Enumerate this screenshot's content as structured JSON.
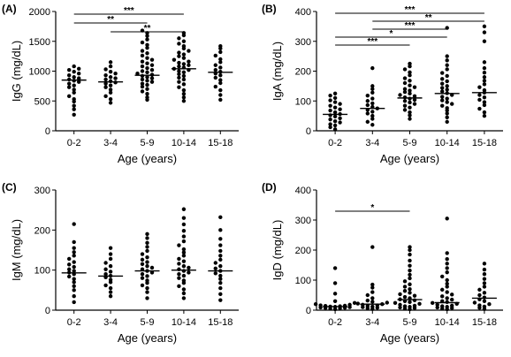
{
  "chart_data": [
    {
      "panel": "(A)",
      "type": "scatter",
      "xlabel": "Age (years)",
      "ylabel": "IgG (mg/dL)",
      "ylim": [
        0,
        2000
      ],
      "yticks": [
        0,
        500,
        1000,
        1500,
        2000
      ],
      "categories": [
        "0-2",
        "3-4",
        "5-9",
        "10-14",
        "15-18"
      ],
      "medians": [
        850,
        820,
        930,
        1040,
        980
      ],
      "points": [
        [
          270,
          360,
          420,
          490,
          530,
          580,
          640,
          690,
          730,
          760,
          790,
          820,
          840,
          860,
          880,
          900,
          930,
          960,
          990,
          1020,
          1040,
          1080
        ],
        [
          470,
          530,
          580,
          640,
          690,
          730,
          760,
          790,
          810,
          830,
          860,
          880,
          900,
          930,
          960,
          990,
          1030,
          1080,
          1150
        ],
        [
          520,
          560,
          620,
          660,
          700,
          740,
          770,
          790,
          820,
          840,
          860,
          880,
          900,
          920,
          940,
          960,
          980,
          1000,
          1020,
          1050,
          1080,
          1100,
          1130,
          1160,
          1190,
          1220,
          1260,
          1300,
          1340,
          1390,
          1440,
          1480,
          1530,
          1590,
          1640,
          1680
        ],
        [
          500,
          560,
          620,
          680,
          730,
          780,
          820,
          860,
          890,
          920,
          950,
          980,
          1000,
          1020,
          1040,
          1060,
          1080,
          1100,
          1120,
          1140,
          1160,
          1190,
          1220,
          1250,
          1280,
          1310,
          1340,
          1380,
          1420,
          1460,
          1500,
          1550,
          1600,
          1640
        ],
        [
          520,
          600,
          680,
          740,
          800,
          850,
          890,
          930,
          960,
          990,
          1020,
          1060,
          1100,
          1150,
          1200,
          1260,
          1320,
          1380,
          1420
        ]
      ],
      "brackets": [
        {
          "from": "0-2",
          "to": "10-14",
          "label": "***"
        },
        {
          "from": "0-2",
          "to": "5-9",
          "label": "**"
        },
        {
          "from": "3-4",
          "to": "10-14",
          "label": "**"
        }
      ]
    },
    {
      "panel": "(B)",
      "type": "scatter",
      "xlabel": "Age (years)",
      "ylabel": "IgA (mg/dL)",
      "ylim": [
        0,
        400
      ],
      "yticks": [
        0,
        100,
        200,
        300,
        400
      ],
      "categories": [
        "0-2",
        "3-4",
        "5-9",
        "10-14",
        "15-18"
      ],
      "medians": [
        55,
        75,
        110,
        125,
        128
      ],
      "points": [
        [
          5,
          12,
          18,
          22,
          28,
          32,
          38,
          42,
          48,
          52,
          56,
          62,
          68,
          72,
          78,
          84,
          90,
          96,
          102,
          110,
          118,
          125
        ],
        [
          20,
          30,
          40,
          50,
          58,
          64,
          70,
          75,
          80,
          86,
          92,
          100,
          108,
          118,
          128,
          140,
          150,
          210
        ],
        [
          40,
          52,
          62,
          70,
          78,
          84,
          90,
          95,
          100,
          104,
          108,
          112,
          116,
          120,
          125,
          130,
          135,
          140,
          146,
          152,
          160,
          168,
          176,
          186,
          196,
          206,
          216,
          225
        ],
        [
          30,
          45,
          58,
          68,
          76,
          84,
          90,
          96,
          102,
          108,
          114,
          120,
          126,
          132,
          138,
          144,
          150,
          158,
          166,
          174,
          184,
          194,
          206,
          220,
          236,
          250,
          345
        ],
        [
          50,
          62,
          74,
          86,
          96,
          104,
          112,
          120,
          128,
          136,
          146,
          156,
          168,
          180,
          195,
          210,
          230,
          300,
          330,
          350
        ]
      ],
      "brackets": [
        {
          "from": "0-2",
          "to": "15-18",
          "label": "***"
        },
        {
          "from": "3-4",
          "to": "15-18",
          "label": "**"
        },
        {
          "from": "3-4",
          "to": "10-14",
          "label": "***"
        },
        {
          "from": "0-2",
          "to": "10-14",
          "label": "*"
        },
        {
          "from": "0-2",
          "to": "5-9",
          "label": "***"
        }
      ]
    },
    {
      "panel": "(C)",
      "type": "scatter",
      "xlabel": "Age (years)",
      "ylabel": "IgM (mg/dL)",
      "ylim": [
        0,
        300
      ],
      "yticks": [
        0,
        100,
        200,
        300
      ],
      "categories": [
        "0-2",
        "3-4",
        "5-9",
        "10-14",
        "15-18"
      ],
      "medians": [
        93,
        85,
        98,
        100,
        98
      ],
      "points": [
        [
          20,
          35,
          50,
          60,
          70,
          78,
          84,
          90,
          94,
          98,
          102,
          108,
          114,
          120,
          128,
          136,
          145,
          155,
          170,
          215
        ],
        [
          35,
          45,
          55,
          62,
          70,
          76,
          82,
          86,
          90,
          96,
          102,
          110,
          118,
          128,
          140,
          155
        ],
        [
          30,
          45,
          55,
          62,
          68,
          74,
          80,
          85,
          90,
          94,
          98,
          102,
          106,
          110,
          115,
          120,
          126,
          132,
          140,
          148,
          158,
          168,
          180,
          190
        ],
        [
          30,
          42,
          52,
          60,
          68,
          74,
          80,
          86,
          90,
          94,
          98,
          102,
          106,
          110,
          116,
          122,
          128,
          136,
          144,
          152,
          162,
          172,
          184,
          198,
          214,
          230,
          252
        ],
        [
          25,
          40,
          55,
          68,
          78,
          86,
          92,
          98,
          104,
          110,
          118,
          126,
          136,
          148,
          162,
          178,
          200,
          232
        ]
      ],
      "brackets": []
    },
    {
      "panel": "(D)",
      "type": "scatter",
      "xlabel": "Age (years)",
      "ylabel": "IgD (mg/dL)",
      "ylim": [
        0,
        400
      ],
      "yticks": [
        0,
        100,
        200,
        300,
        400
      ],
      "categories": [
        "0-2",
        "3-4",
        "5-9",
        "10-14",
        "15-18"
      ],
      "medians": [
        12,
        20,
        35,
        25,
        40
      ],
      "points": [
        [
          3,
          5,
          6,
          7,
          8,
          9,
          10,
          11,
          12,
          13,
          14,
          15,
          16,
          18,
          20,
          24,
          30,
          55,
          90,
          140
        ],
        [
          4,
          6,
          8,
          10,
          12,
          14,
          16,
          18,
          20,
          22,
          25,
          28,
          32,
          40,
          50,
          60,
          75,
          85,
          210
        ],
        [
          3,
          5,
          7,
          9,
          11,
          13,
          15,
          18,
          21,
          24,
          27,
          30,
          33,
          36,
          40,
          44,
          48,
          53,
          58,
          64,
          70,
          78,
          86,
          96,
          106,
          118,
          132,
          148,
          165,
          185,
          200,
          210
        ],
        [
          3,
          5,
          7,
          9,
          11,
          13,
          15,
          18,
          21,
          24,
          27,
          30,
          35,
          40,
          46,
          52,
          60,
          68,
          78,
          88,
          100,
          112,
          126,
          140,
          155,
          170,
          190,
          305
        ],
        [
          4,
          8,
          12,
          16,
          20,
          25,
          30,
          36,
          42,
          50,
          58,
          68,
          78,
          90,
          104,
          120,
          135,
          155
        ]
      ],
      "brackets": [
        {
          "from": "0-2",
          "to": "5-9",
          "label": "*"
        }
      ]
    }
  ]
}
